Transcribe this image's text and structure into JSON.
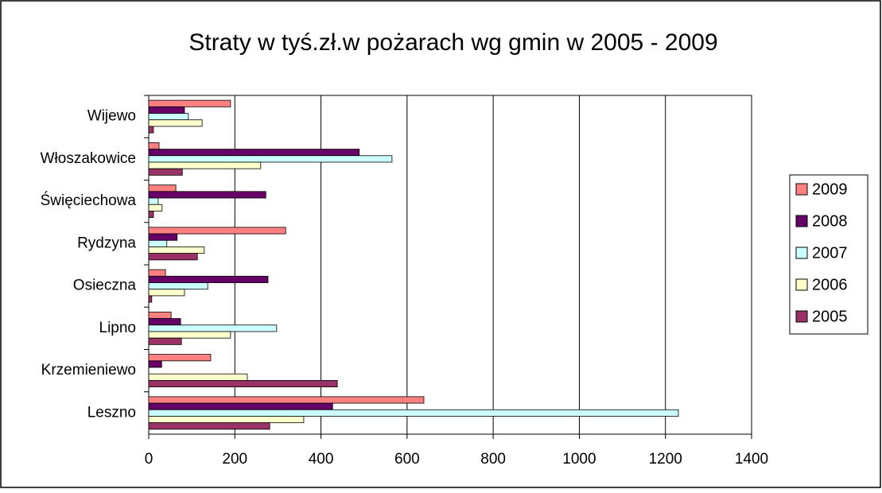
{
  "chart_data": {
    "type": "hbar",
    "title": "Straty w tyś.zł.w pożarach wg gmin w 2005 - 2009",
    "categories": [
      "Wijewo",
      "Włoszakowice",
      "Święciechowa",
      "Rydzyna",
      "Osieczna",
      "Lipno",
      "Krzemieniewo",
      "Leszno"
    ],
    "series": [
      {
        "name": "2009",
        "color": "#ff8080",
        "values": [
          190,
          24,
          63,
          318,
          39,
          52,
          144,
          639
        ]
      },
      {
        "name": "2008",
        "color": "#660066",
        "values": [
          83,
          489,
          272,
          66,
          277,
          74,
          30,
          427
        ]
      },
      {
        "name": "2007",
        "color": "#ccffff",
        "values": [
          92,
          565,
          22,
          42,
          137,
          297,
          0,
          1230
        ]
      },
      {
        "name": "2006",
        "color": "#ffffcc",
        "values": [
          124,
          260,
          31,
          129,
          83,
          190,
          229,
          360
        ]
      },
      {
        "name": "2005",
        "color": "#993366",
        "values": [
          11,
          78,
          11,
          113,
          7,
          76,
          438,
          281
        ]
      }
    ],
    "xlim": [
      0,
      1400
    ],
    "xticks": [
      0,
      200,
      400,
      600,
      800,
      1000,
      1200,
      1400
    ],
    "grid": true
  }
}
